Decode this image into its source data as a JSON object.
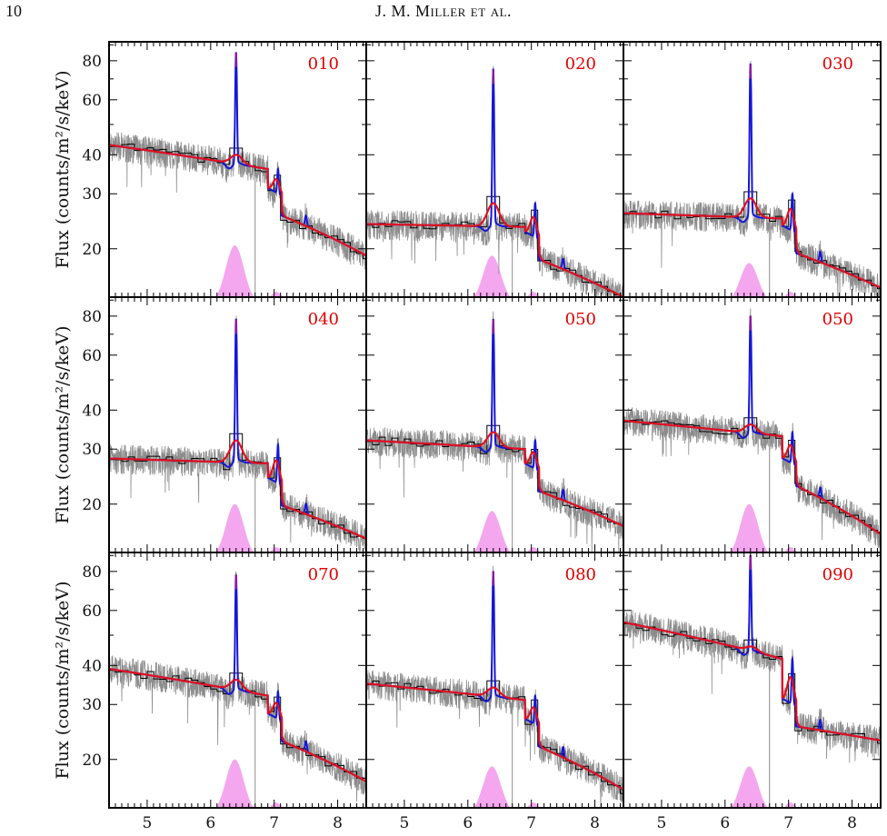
{
  "header": {
    "page_number": "10",
    "running_head": "J. M. Miller et al."
  },
  "chart_data": {
    "type": "line",
    "layout": "3x3 grid of spectra panels",
    "xlabel": "",
    "ylabel": "Flux (counts/m²/s/keV)",
    "xlim": [
      4.4,
      8.45
    ],
    "ylim": [
      14,
      92
    ],
    "y_scale": "log",
    "x_tick_labels": [
      "5",
      "6",
      "7",
      "8"
    ],
    "x_ticks": [
      5,
      6,
      7,
      8
    ],
    "y_tick_labels": [
      "20",
      "30",
      "40",
      "60",
      "80"
    ],
    "y_ticks": [
      20,
      30,
      40,
      60,
      80
    ],
    "colors": {
      "data": "#8c8c8c",
      "binned": "#000000",
      "blue_model": "#1515d8",
      "red_model": "#e01020",
      "pink_component": "#f4a7ee",
      "label": "#e00000"
    },
    "series_styles": [
      {
        "key": "data",
        "description": "unbinned spectrum",
        "color": "#8c8c8c"
      },
      {
        "key": "binned",
        "description": "binned spectrum",
        "color": "#000000"
      },
      {
        "key": "blue_model",
        "description": "narrow-line model",
        "color": "#1515d8"
      },
      {
        "key": "red_model",
        "description": "broadened model",
        "color": "#e01020"
      },
      {
        "key": "pink_component",
        "description": "broad Gaussian component",
        "color": "#f4a7ee"
      }
    ],
    "panels": [
      {
        "label": "010",
        "cont_start": 43,
        "cont_pre": 36,
        "edge_after": 29,
        "cont_end": 19,
        "broad_peak": 40,
        "narrow_peak": 85,
        "fe26_peak": 36,
        "pink_height": 20.5,
        "show_ylabel": true,
        "show_xticks": false
      },
      {
        "label": "020",
        "cont_start": 24,
        "cont_pre": 23.5,
        "edge_after": 21,
        "cont_end": 14,
        "broad_peak": 28,
        "narrow_peak": 75,
        "fe26_peak": 28,
        "pink_height": 19,
        "show_ylabel": false,
        "show_xticks": false
      },
      {
        "label": "030",
        "cont_start": 26,
        "cont_pre": 25,
        "edge_after": 22,
        "cont_end": 15,
        "broad_peak": 29,
        "narrow_peak": 78,
        "fe26_peak": 30,
        "pink_height": 18,
        "show_ylabel": false,
        "show_xticks": false
      },
      {
        "label": "040",
        "cont_start": 28,
        "cont_pre": 27,
        "edge_after": 22.5,
        "cont_end": 15.5,
        "broad_peak": 32,
        "narrow_peak": 78,
        "fe26_peak": 31,
        "pink_height": 20,
        "show_ylabel": true,
        "show_xticks": false
      },
      {
        "label": "050",
        "cont_start": 32,
        "cont_pre": 30,
        "edge_after": 25,
        "cont_end": 17,
        "broad_peak": 34,
        "narrow_peak": 78,
        "fe26_peak": 32,
        "pink_height": 19,
        "show_ylabel": false,
        "show_xticks": false
      },
      {
        "label": "050",
        "cont_start": 37,
        "cont_pre": 33,
        "edge_after": 26,
        "cont_end": 16,
        "broad_peak": 36,
        "narrow_peak": 80,
        "fe26_peak": 34,
        "pink_height": 20,
        "show_ylabel": false,
        "show_xticks": false
      },
      {
        "label": "070",
        "cont_start": 39,
        "cont_pre": 32,
        "edge_after": 26,
        "cont_end": 17,
        "broad_peak": 36,
        "narrow_peak": 78,
        "fe26_peak": 33,
        "pink_height": 20,
        "show_ylabel": true,
        "show_xticks": true
      },
      {
        "label": "080",
        "cont_start": 35,
        "cont_pre": 31,
        "edge_after": 25,
        "cont_end": 16,
        "broad_peak": 34,
        "narrow_peak": 80,
        "fe26_peak": 32,
        "pink_height": 19,
        "show_ylabel": false,
        "show_xticks": true
      },
      {
        "label": "090",
        "cont_start": 55,
        "cont_pre": 42,
        "edge_after": 29,
        "cont_end": 23,
        "broad_peak": 46,
        "narrow_peak": 90,
        "fe26_peak": 42,
        "pink_height": 19,
        "show_ylabel": false,
        "show_xticks": true
      }
    ]
  }
}
